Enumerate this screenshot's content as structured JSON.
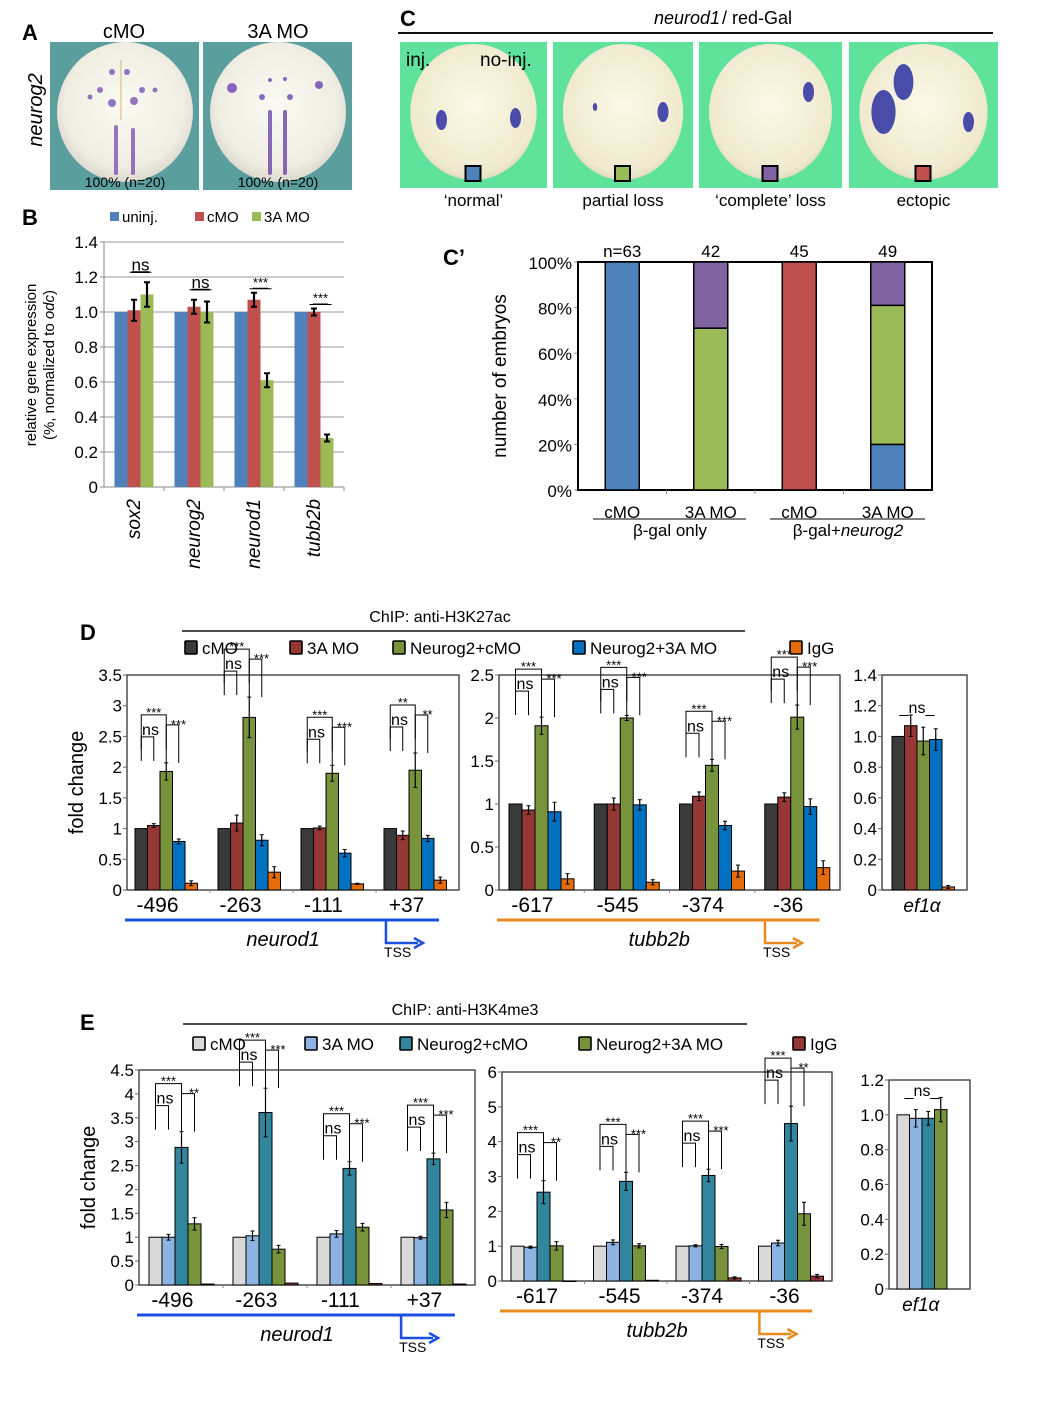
{
  "panels": {
    "A": {
      "letter": "A",
      "row_label": "neurog2",
      "columns": [
        "cMO",
        "3A MO"
      ],
      "captions": [
        "100% (n=20)",
        "100% (n=20)"
      ]
    },
    "B": {
      "letter": "B"
    },
    "C": {
      "letter": "C",
      "title_italic": "neurod1",
      "title_rest": "/ red-Gal",
      "overlays": {
        "inj": "inj.",
        "no_inj": "no-inj."
      },
      "categories": [
        {
          "label": "‘normal’",
          "color": "#4f81bd"
        },
        {
          "label": "partial loss",
          "color": "#9bbb59"
        },
        {
          "label": "‘complete’ loss",
          "color": "#8064a2"
        },
        {
          "label": "ectopic",
          "color": "#c0504d"
        }
      ]
    },
    "Cprime": {
      "letter": "C’"
    },
    "D": {
      "letter": "D",
      "header": "ChIP: anti-H3K27ac"
    },
    "E": {
      "letter": "E",
      "header": "ChIP: anti-H3K4me3"
    }
  },
  "chart_data": [
    {
      "id": "B",
      "type": "bar",
      "ylabel": "relative gene expression (%, normalized to odc)",
      "ylim": [
        0,
        1.4
      ],
      "yticks": [
        "0",
        "0.2",
        "0.4",
        "0.6",
        "0.8",
        "1.0",
        "1.2",
        "1.4"
      ],
      "grid": true,
      "legend_position": "top",
      "categories": [
        "sox2",
        "neurog2",
        "neurod1",
        "tubb2b"
      ],
      "series": [
        {
          "name": "uninj.",
          "color": "#4f81bd",
          "values": [
            1.0,
            1.0,
            1.0,
            1.0
          ],
          "errors": [
            0,
            0,
            0,
            0
          ]
        },
        {
          "name": "cMO",
          "color": "#c0504d",
          "values": [
            1.01,
            1.03,
            1.07,
            1.0
          ],
          "errors": [
            0.06,
            0.04,
            0.04,
            0.02
          ]
        },
        {
          "name": "3A MO",
          "color": "#9bbb59",
          "values": [
            1.1,
            1.0,
            0.61,
            0.28
          ],
          "errors": [
            0.07,
            0.06,
            0.04,
            0.02
          ]
        }
      ],
      "significance": [
        "ns",
        "ns",
        "***",
        "***"
      ]
    },
    {
      "id": "Cprime",
      "type": "bar",
      "stacked": true,
      "ylabel": "number of embryos",
      "ylim": [
        0,
        100
      ],
      "yticks": [
        "0%",
        "20%",
        "40%",
        "60%",
        "80%",
        "100%"
      ],
      "categories": [
        "cMO",
        "3A MO",
        "cMO",
        "3A MO"
      ],
      "counts": [
        "n=63",
        "42",
        "45",
        "49"
      ],
      "groups": [
        {
          "label": "β-gal only",
          "span": [
            0,
            1
          ]
        },
        {
          "label_plain": "β-gal+",
          "label_italic": "neurog2",
          "span": [
            2,
            3
          ]
        }
      ],
      "series": [
        {
          "name": "normal",
          "color": "#4f81bd",
          "values": [
            100,
            0,
            0,
            20
          ]
        },
        {
          "name": "partial loss",
          "color": "#9bbb59",
          "values": [
            0,
            71,
            0,
            61
          ]
        },
        {
          "name": "complete loss",
          "color": "#8064a2",
          "values": [
            0,
            29,
            0,
            19
          ]
        },
        {
          "name": "ectopic",
          "color": "#c0504d",
          "values": [
            0,
            0,
            100,
            0
          ]
        }
      ]
    },
    {
      "id": "D-neurod1",
      "type": "bar",
      "title": "ChIP: anti-H3K27ac",
      "ylabel": "fold change",
      "ylim": [
        0,
        3.5
      ],
      "yticks": [
        "0",
        "0.5",
        "1",
        "1.5",
        "2",
        "2.5",
        "3",
        "3.5"
      ],
      "categories": [
        "-496",
        "-263",
        "-111",
        "+37"
      ],
      "gene": "neurod1",
      "tss": "TSS",
      "series_names": [
        "cMO",
        "3A MO",
        "Neurog2+cMO",
        "Neurog2+3A MO",
        "IgG"
      ],
      "series_colors": [
        "#3a3a3a",
        "#953735",
        "#77933c",
        "#0070c0",
        "#e46c0a"
      ],
      "values": [
        [
          1.0,
          1.05,
          1.93,
          0.79,
          0.11
        ],
        [
          1.0,
          1.09,
          2.81,
          0.81,
          0.29
        ],
        [
          1.0,
          1.01,
          1.9,
          0.6,
          0.1
        ],
        [
          1.0,
          0.89,
          1.95,
          0.84,
          0.16
        ]
      ],
      "errors": [
        [
          0,
          0.03,
          0.14,
          0.04,
          0.04
        ],
        [
          0,
          0.13,
          0.33,
          0.09,
          0.09
        ],
        [
          0,
          0.03,
          0.13,
          0.06,
          0.01
        ],
        [
          0,
          0.07,
          0.28,
          0.05,
          0.05
        ]
      ],
      "significance": [
        [
          "***",
          "ns",
          "***"
        ],
        [
          "***",
          "ns",
          "***"
        ],
        [
          "***",
          "ns",
          "***"
        ],
        [
          "**",
          "ns",
          "**"
        ]
      ]
    },
    {
      "id": "D-tubb2b",
      "type": "bar",
      "ylim": [
        0,
        2.5
      ],
      "yticks": [
        "0",
        "0.5",
        "1",
        "1.5",
        "2",
        "2.5"
      ],
      "categories": [
        "-617",
        "-545",
        "-374",
        "-36"
      ],
      "gene": "tubb2b",
      "tss": "TSS",
      "values": [
        [
          1.0,
          0.93,
          1.91,
          0.91,
          0.13
        ],
        [
          1.0,
          1.0,
          2.0,
          0.99,
          0.09
        ],
        [
          1.0,
          1.09,
          1.45,
          0.75,
          0.22
        ],
        [
          1.0,
          1.08,
          2.01,
          0.97,
          0.26
        ]
      ],
      "errors": [
        [
          0,
          0.05,
          0.1,
          0.11,
          0.06
        ],
        [
          0,
          0.07,
          0.03,
          0.06,
          0.03
        ],
        [
          0,
          0.05,
          0.07,
          0.05,
          0.07
        ],
        [
          0,
          0.05,
          0.14,
          0.09,
          0.08
        ]
      ],
      "significance": [
        [
          "***",
          "ns",
          "***"
        ],
        [
          "***",
          "ns",
          "***"
        ],
        [
          "***",
          "ns",
          "***"
        ],
        [
          "***",
          "ns",
          "***"
        ]
      ]
    },
    {
      "id": "D-ef1a",
      "type": "bar",
      "ylim": [
        0,
        1.4
      ],
      "yticks": [
        "0",
        "0.2",
        "0.4",
        "0.6",
        "0.8",
        "1.0",
        "1.2",
        "1.4"
      ],
      "categories": [
        "ef1α"
      ],
      "values": [
        [
          1.0,
          1.07,
          0.97,
          0.98,
          0.02
        ]
      ],
      "errors": [
        [
          0,
          0.07,
          0.09,
          0.07,
          0.01
        ]
      ],
      "significance_label": "_ns_"
    },
    {
      "id": "E-neurod1",
      "type": "bar",
      "title": "ChIP: anti-H3K4me3",
      "ylabel": "fold change",
      "ylim": [
        0,
        4.5
      ],
      "yticks": [
        "0",
        "0.5",
        "1",
        "1.5",
        "2",
        "2.5",
        "3",
        "3.5",
        "4",
        "4.5"
      ],
      "categories": [
        "-496",
        "-263",
        "-111",
        "+37"
      ],
      "gene": "neurod1",
      "tss": "TSS",
      "series_names": [
        "cMO",
        "3A MO",
        "Neurog2+cMO",
        "Neurog2+3A MO",
        "IgG"
      ],
      "series_colors": [
        "#d9d9d9",
        "#8db3e2",
        "#31859c",
        "#77933c",
        "#953735"
      ],
      "values": [
        [
          1.0,
          1.0,
          2.88,
          1.28,
          0.02
        ],
        [
          1.0,
          1.03,
          3.61,
          0.75,
          0.04
        ],
        [
          1.0,
          1.07,
          2.44,
          1.21,
          0.03
        ],
        [
          1.0,
          0.99,
          2.64,
          1.57,
          0.02
        ]
      ],
      "errors": [
        [
          0,
          0.06,
          0.33,
          0.13,
          0
        ],
        [
          0,
          0.1,
          0.51,
          0.08,
          0
        ],
        [
          0,
          0.07,
          0.14,
          0.08,
          0
        ],
        [
          0,
          0.03,
          0.12,
          0.16,
          0
        ]
      ],
      "significance": [
        [
          "***",
          "ns",
          "**"
        ],
        [
          "***",
          "ns",
          "***"
        ],
        [
          "***",
          "ns",
          "***"
        ],
        [
          "***",
          "ns",
          "***"
        ]
      ]
    },
    {
      "id": "E-tubb2b",
      "type": "bar",
      "ylim": [
        0,
        6
      ],
      "yticks": [
        "0",
        "1",
        "2",
        "3",
        "4",
        "5",
        "6"
      ],
      "categories": [
        "-617",
        "-545",
        "-374",
        "-36"
      ],
      "gene": "tubb2b",
      "tss": "TSS",
      "values": [
        [
          1.0,
          0.97,
          2.55,
          1.01,
          0.0
        ],
        [
          1.0,
          1.11,
          2.86,
          1.01,
          0.02
        ],
        [
          1.0,
          1.01,
          3.03,
          0.99,
          0.09
        ],
        [
          1.0,
          1.09,
          4.52,
          1.93,
          0.14
        ]
      ],
      "errors": [
        [
          0,
          0.03,
          0.33,
          0.12,
          0
        ],
        [
          0,
          0.07,
          0.26,
          0.06,
          0
        ],
        [
          0,
          0.03,
          0.18,
          0.06,
          0.03
        ],
        [
          0,
          0.08,
          0.5,
          0.33,
          0.05
        ]
      ],
      "significance": [
        [
          "***",
          "ns",
          "**"
        ],
        [
          "***",
          "ns",
          "***"
        ],
        [
          "***",
          "ns",
          "***"
        ],
        [
          "***",
          "ns",
          "**"
        ]
      ]
    },
    {
      "id": "E-ef1a",
      "type": "bar",
      "ylim": [
        0,
        1.2
      ],
      "yticks": [
        "0",
        "0.2",
        "0.4",
        "0.6",
        "0.8",
        "1.0",
        "1.2"
      ],
      "categories": [
        "ef1α"
      ],
      "values": [
        [
          1.0,
          0.98,
          0.98,
          1.03
        ]
      ],
      "errors": [
        [
          0,
          0.05,
          0.04,
          0.07
        ]
      ],
      "significance_label": "_ns_"
    }
  ]
}
